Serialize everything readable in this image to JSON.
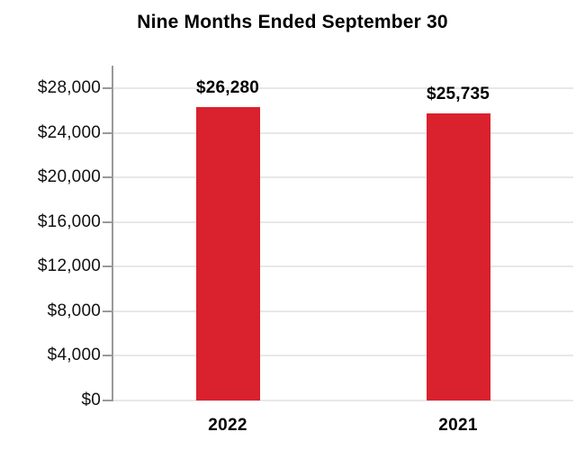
{
  "chart_data": {
    "type": "bar",
    "title": "Nine Months Ended September 30",
    "categories": [
      "2022",
      "2021"
    ],
    "values": [
      26280,
      25735
    ],
    "value_labels": [
      "$26,280",
      "$25,735"
    ],
    "yticks": [
      0,
      4000,
      8000,
      12000,
      16000,
      20000,
      24000,
      28000
    ],
    "ytick_labels": [
      "$0",
      "$4,000",
      "$8,000",
      "$12,000",
      "$16,000",
      "$20,000",
      "$24,000",
      "$28,000"
    ],
    "ylim": [
      0,
      28000
    ],
    "xlabel": "",
    "ylabel": "",
    "grid": true,
    "legend": false,
    "colors": {
      "bar": "#DA212E",
      "axis": "#999999",
      "gridline": "#E8E8E8",
      "title_text": "#000000",
      "tick_text": "#111111",
      "background": "#FFFFFF"
    }
  }
}
